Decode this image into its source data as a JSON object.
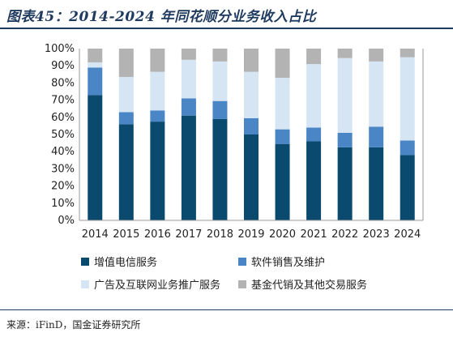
{
  "header": {
    "title": "图表45：2014-2024 年同花顺分业务收入占比"
  },
  "footer": {
    "source_label": "来源：",
    "source_text": "iFinD，国金证券研究所"
  },
  "colors": {
    "series": [
      "#0b4a6f",
      "#4a86c6",
      "#d6e5f4",
      "#b3b3b3"
    ],
    "axis": "#999999",
    "text": "#222222"
  },
  "chart_data": {
    "type": "bar",
    "stacked": true,
    "percent": true,
    "categories": [
      "2014",
      "2015",
      "2016",
      "2017",
      "2018",
      "2019",
      "2020",
      "2021",
      "2022",
      "2023",
      "2024"
    ],
    "series": [
      {
        "name": "增值电信服务",
        "values": [
          73,
          56,
          57.5,
          61,
          59,
          50,
          44.5,
          46,
          42.5,
          42.5,
          38
        ]
      },
      {
        "name": "软件销售及维护",
        "values": [
          16,
          7,
          6.5,
          10,
          10.5,
          9.5,
          8.5,
          8,
          8.5,
          12,
          8.5
        ]
      },
      {
        "name": "广告及互联网业务推广服务",
        "values": [
          3,
          20.5,
          22.5,
          22.5,
          23,
          27,
          30,
          37,
          43.5,
          38,
          48.5
        ]
      },
      {
        "name": "基金代销及其他交易服务",
        "values": [
          8,
          16.5,
          13.5,
          6.5,
          7.5,
          13.5,
          17,
          9,
          5.5,
          7.5,
          5
        ]
      }
    ],
    "ylim": [
      0,
      100
    ],
    "yticks": [
      "0%",
      "10%",
      "20%",
      "30%",
      "40%",
      "50%",
      "60%",
      "70%",
      "80%",
      "90%",
      "100%"
    ],
    "legend_position": "bottom",
    "grid": false
  }
}
